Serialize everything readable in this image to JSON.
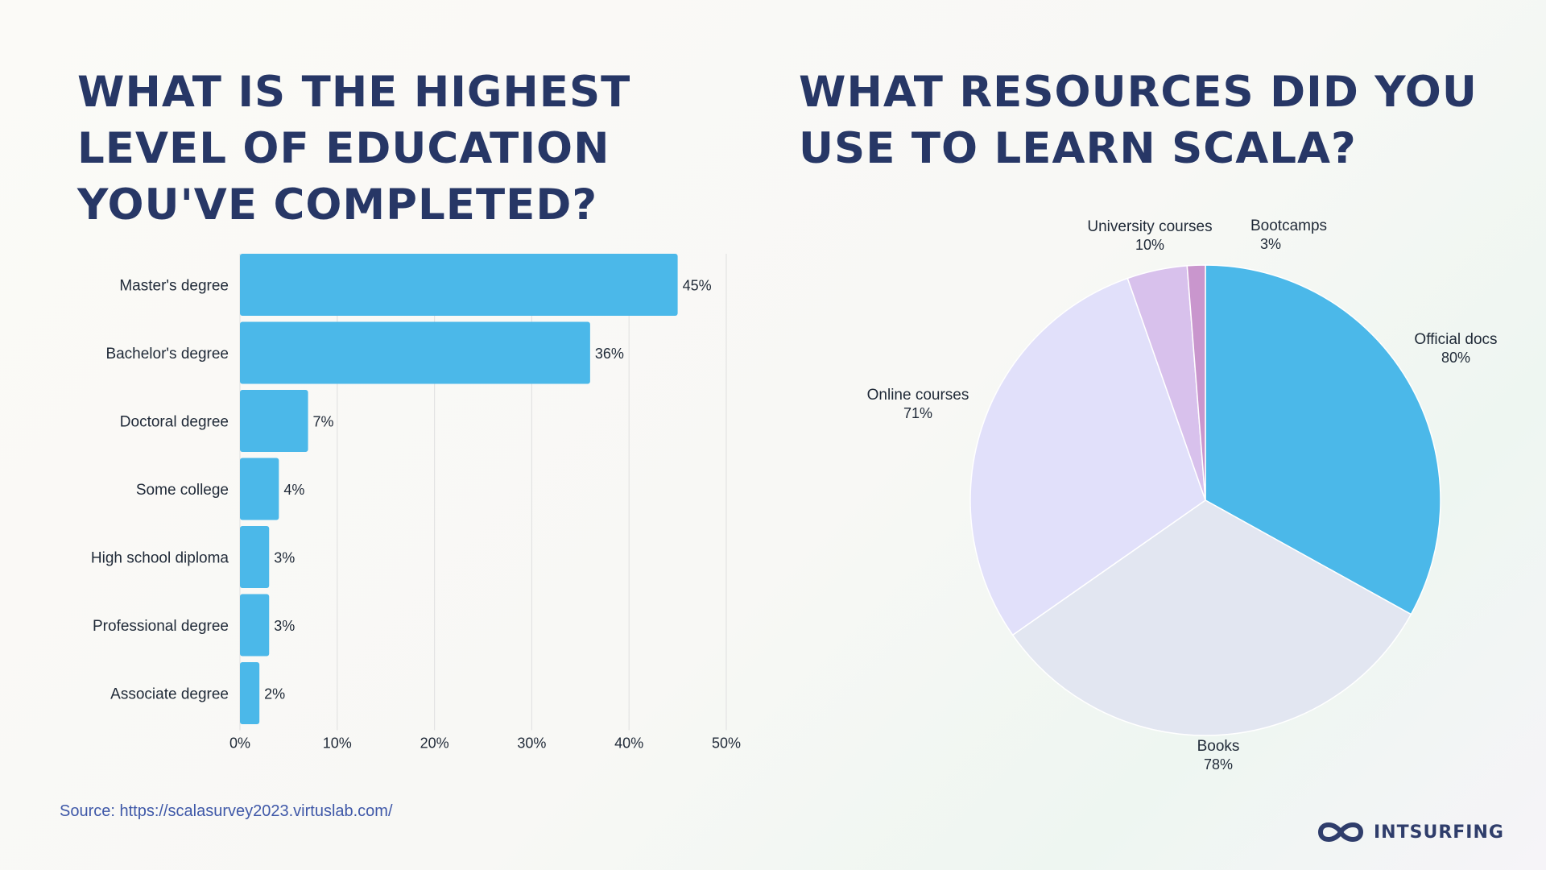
{
  "charts": {
    "education": {
      "title": "WHAT IS THE HIGHEST LEVEL OF EDUCATION YOU'VE COMPLETED?"
    },
    "resources": {
      "title": "WHAT RESOURCES DID YOU USE TO LEARN SCALA?"
    }
  },
  "chart_data": [
    {
      "type": "bar",
      "orientation": "horizontal",
      "title": "WHAT IS THE HIGHEST LEVEL OF EDUCATION YOU'VE COMPLETED?",
      "categories": [
        "Master's degree",
        "Bachelor's degree",
        "Doctoral degree",
        "Some college",
        "High school diploma",
        "Professional degree",
        "Associate degree"
      ],
      "values": [
        45,
        36,
        7,
        4,
        3,
        3,
        2
      ],
      "value_labels": [
        "45%",
        "36%",
        "7%",
        "4%",
        "3%",
        "3%",
        "2%"
      ],
      "xlim": [
        0,
        50
      ],
      "xticks": [
        "0%",
        "10%",
        "20%",
        "30%",
        "40%",
        "50%"
      ],
      "grid": true,
      "color": "#4bb8e9"
    },
    {
      "type": "pie",
      "title": "WHAT RESOURCES DID YOU USE TO LEARN SCALA?",
      "labels": [
        "Official docs",
        "Books",
        "Online courses",
        "University courses",
        "Bootcamps"
      ],
      "values": [
        80,
        78,
        71,
        10,
        3
      ],
      "value_labels": [
        "80%",
        "78%",
        "71%",
        "10%",
        "3%"
      ],
      "colors": [
        "#4bb8e9",
        "#e2e6f1",
        "#e1e0fa",
        "#d8c1ec",
        "#c996cd"
      ]
    }
  ],
  "footer": {
    "source": "Source: https://scalasurvey2023.virtuslab.com/",
    "brand": "INTSURFING",
    "logo_icon": "infinity-loop-icon",
    "logo_color": "#2f3d6b"
  }
}
